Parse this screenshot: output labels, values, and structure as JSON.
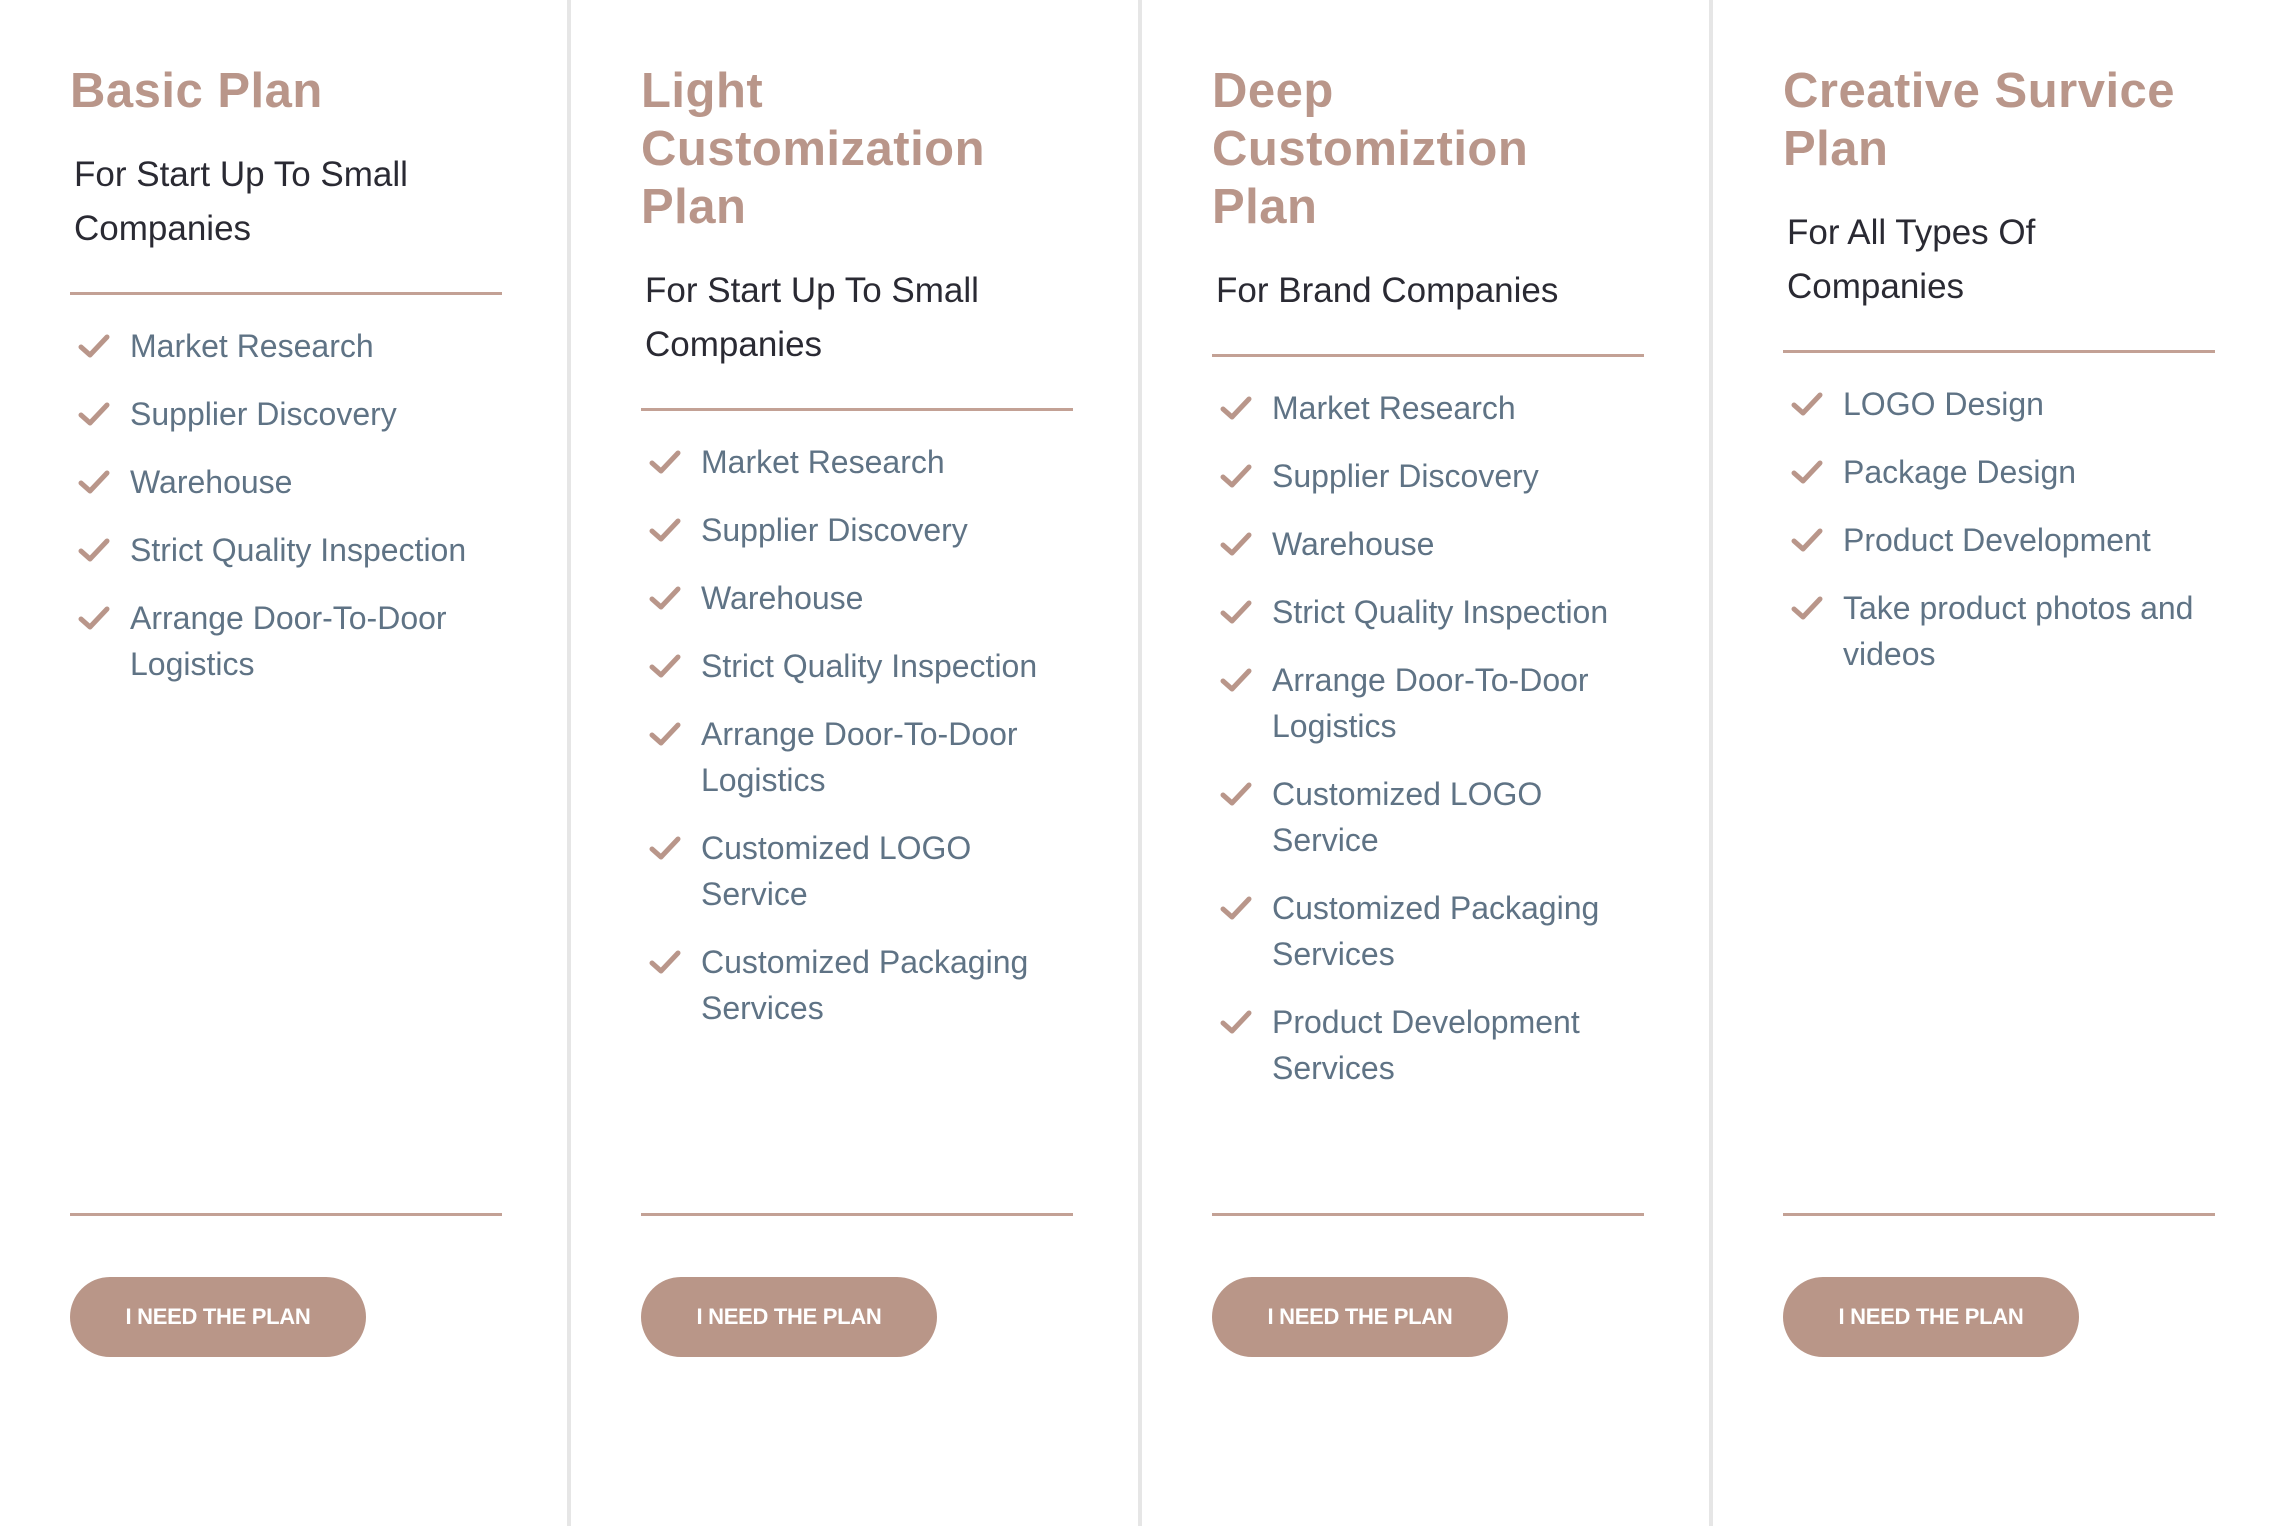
{
  "colors": {
    "accent": "#b9968a",
    "feature_text": "#5f7385",
    "subtitle_text": "#2a2a33",
    "divider": "#e6e6e6"
  },
  "plans": [
    {
      "title": "Basic Plan",
      "subtitle": "For Start Up To Small Companies",
      "features": [
        "Market Research",
        "Supplier Discovery",
        "Warehouse",
        "Strict Quality Inspection",
        "Arrange Door-To-Door Logistics"
      ],
      "button": "I NEED THE PLAN"
    },
    {
      "title": "Light Customization Plan",
      "subtitle": "For Start Up To Small Companies",
      "features": [
        "Market Research",
        "Supplier Discovery",
        "Warehouse",
        "Strict Quality Inspection",
        "Arrange Door-To-Door Logistics",
        "Customized LOGO Service",
        "Customized Packaging Services"
      ],
      "button": "I NEED THE PLAN"
    },
    {
      "title": "Deep Customiztion Plan",
      "subtitle": "For Brand Companies",
      "features": [
        "Market Research",
        "Supplier Discovery",
        "Warehouse",
        "Strict Quality Inspection",
        "Arrange Door-To-Door Logistics",
        "Customized LOGO Service",
        "Customized Packaging Services",
        "Product Development Services"
      ],
      "button": "I NEED THE PLAN"
    },
    {
      "title": "Creative Survice Plan",
      "subtitle": "For All Types Of Companies",
      "features": [
        "LOGO Design",
        "Package Design",
        "Product Development",
        "Take product photos and videos"
      ],
      "button": "I NEED THE PLAN"
    }
  ]
}
